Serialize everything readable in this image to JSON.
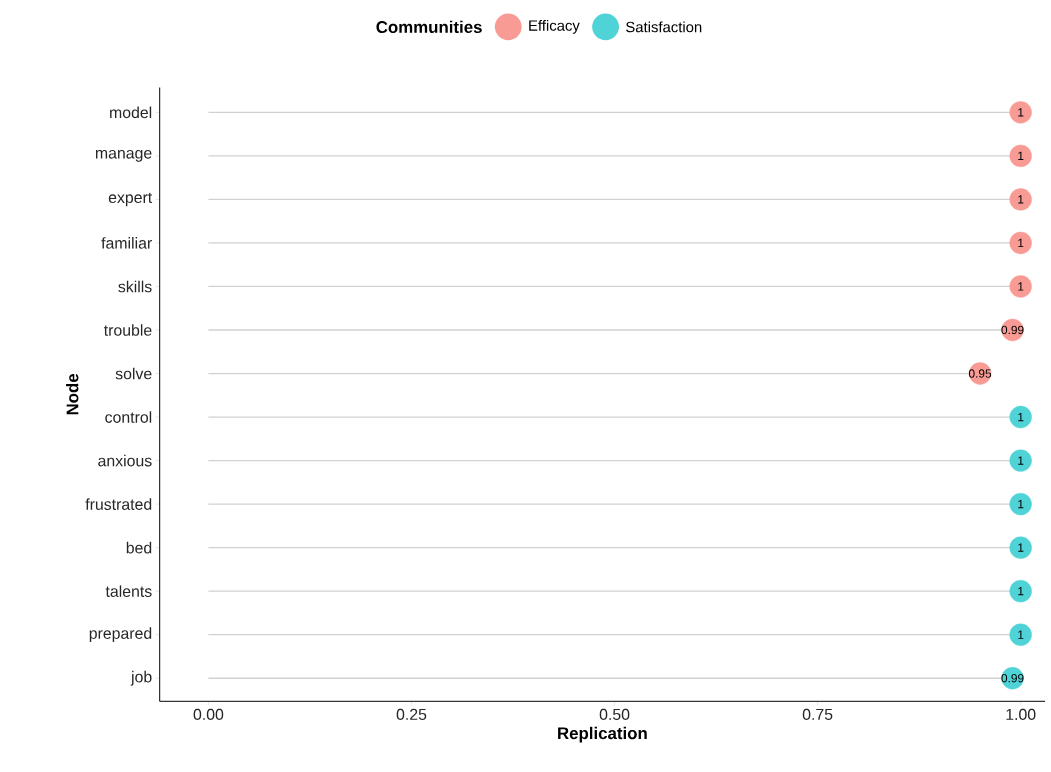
{
  "chart_data": {
    "type": "lollipop",
    "orientation": "horizontal",
    "xlabel": "Replication",
    "ylabel": "Node",
    "legend_title": "Communities",
    "legend": "top",
    "marker": "circle",
    "data_labels": true,
    "categories": [
      "model",
      "manage",
      "expert",
      "familiar",
      "skills",
      "trouble",
      "solve",
      "control",
      "anxious",
      "frustrated",
      "bed",
      "talents",
      "prepared",
      "job"
    ],
    "series": [
      {
        "name": "Efficacy",
        "color": "#f99b95",
        "values": [
          1,
          1,
          1,
          1,
          1,
          0.99,
          0.95,
          null,
          null,
          null,
          null,
          null,
          null,
          null
        ]
      },
      {
        "name": "Satisfaction",
        "color": "#4fd3d6",
        "values": [
          null,
          null,
          null,
          null,
          null,
          null,
          null,
          1,
          1,
          1,
          1,
          1,
          1,
          0.99
        ]
      }
    ],
    "xlim": [
      -0.06,
      1.03
    ],
    "xticks": [
      {
        "value": 0,
        "label": "0.00"
      },
      {
        "value": 0.25,
        "label": "0.25"
      },
      {
        "value": 0.5,
        "label": "0.50"
      },
      {
        "value": 0.75,
        "label": "0.75"
      },
      {
        "value": 1,
        "label": "1.00"
      }
    ]
  }
}
